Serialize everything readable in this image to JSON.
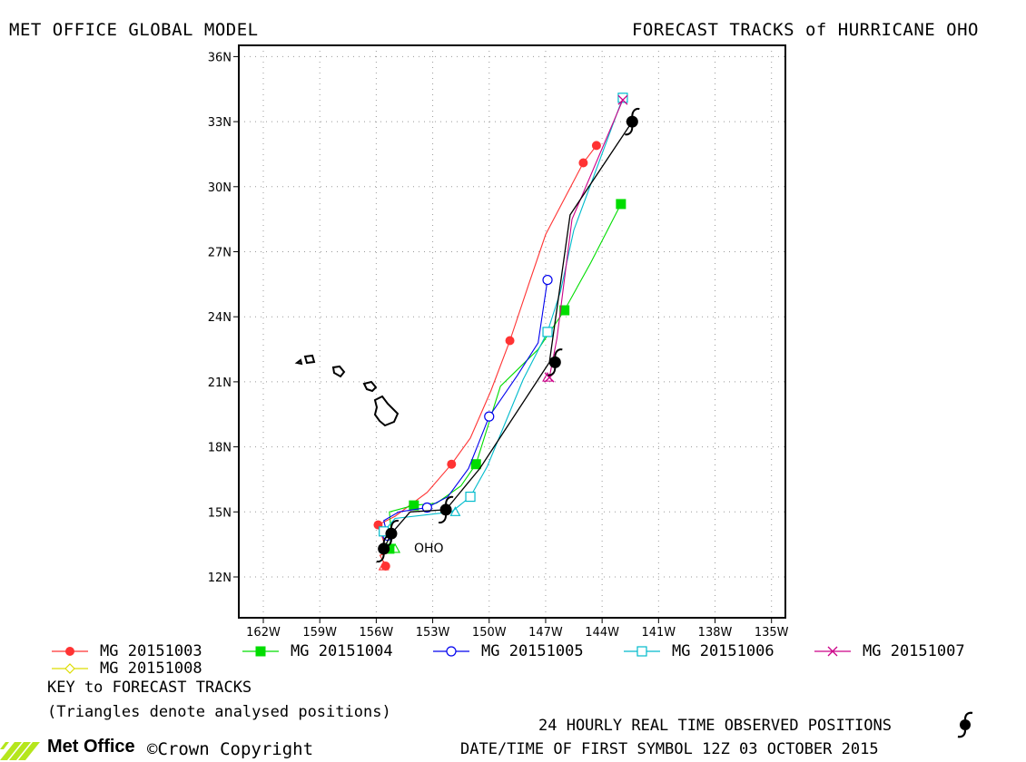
{
  "header": {
    "left_title": "MET OFFICE GLOBAL MODEL",
    "right_title": "FORECAST TRACKS of HURRICANE OHO"
  },
  "map": {
    "lon_range": [
      -163,
      -134
    ],
    "lat_range": [
      10.5,
      36.8
    ],
    "lat_ticks": [
      "36N",
      "33N",
      "30N",
      "27N",
      "24N",
      "21N",
      "18N",
      "15N",
      "12N"
    ],
    "lon_ticks": [
      "162W",
      "159W",
      "156W",
      "153W",
      "150W",
      "147W",
      "144W",
      "141W",
      "138W",
      "135W"
    ],
    "grid": "dotted",
    "storm_label": "OHO"
  },
  "chart_data": {
    "type": "line",
    "title": "FORECAST TRACKS of HURRICANE OHO",
    "xlabel": "",
    "ylabel": "",
    "xlim": [
      -163,
      -134
    ],
    "ylim": [
      10.5,
      36.8
    ],
    "series": [
      {
        "name": "MG 20151003",
        "color": "#ff3333",
        "marker": "filled-circle",
        "points": [
          [
            -155.5,
            12.5
          ],
          [
            -155.8,
            13.0
          ],
          [
            -155.4,
            13.1
          ],
          [
            -155.9,
            14.4
          ],
          [
            -155.0,
            14.8
          ],
          [
            -153.3,
            15.9
          ],
          [
            -152.0,
            17.2
          ],
          [
            -151.0,
            18.4
          ],
          [
            -149.9,
            20.6
          ],
          [
            -148.9,
            22.9
          ],
          [
            -147.9,
            25.5
          ],
          [
            -147.0,
            27.8
          ],
          [
            -145.0,
            31.1
          ],
          [
            -144.3,
            31.9
          ]
        ]
      },
      {
        "name": "MG 20151004",
        "color": "#00dd00",
        "marker": "filled-square",
        "points": [
          [
            -155.3,
            13.3
          ],
          [
            -155.2,
            14.0
          ],
          [
            -155.3,
            15.0
          ],
          [
            -154.0,
            15.3
          ],
          [
            -152.8,
            15.4
          ],
          [
            -151.5,
            16.2
          ],
          [
            -150.7,
            17.2
          ],
          [
            -149.4,
            20.8
          ],
          [
            -147.4,
            22.5
          ],
          [
            -146.0,
            24.3
          ],
          [
            -144.6,
            26.5
          ],
          [
            -143.0,
            29.2
          ]
        ]
      },
      {
        "name": "MG 20151005",
        "color": "#0000ee",
        "marker": "open-circle",
        "points": [
          [
            -155.4,
            13.9
          ],
          [
            -155.6,
            14.6
          ],
          [
            -154.8,
            15.0
          ],
          [
            -153.3,
            15.2
          ],
          [
            -152.2,
            15.7
          ],
          [
            -151.1,
            17.0
          ],
          [
            -150.0,
            19.4
          ],
          [
            -148.5,
            21.3
          ],
          [
            -147.4,
            22.8
          ],
          [
            -146.9,
            25.7
          ]
        ]
      },
      {
        "name": "MG 20151006",
        "color": "#00bbcc",
        "marker": "open-square",
        "points": [
          [
            -155.6,
            14.1
          ],
          [
            -155.0,
            14.7
          ],
          [
            -152.0,
            15.0
          ],
          [
            -151.0,
            15.7
          ],
          [
            -150.1,
            17.1
          ],
          [
            -148.2,
            21.1
          ],
          [
            -146.9,
            23.3
          ],
          [
            -146.2,
            25.2
          ],
          [
            -145.5,
            28.0
          ],
          [
            -142.9,
            34.1
          ]
        ]
      },
      {
        "name": "MG 20151007",
        "color": "#cc0088",
        "marker": "x",
        "points": [
          [
            -146.8,
            21.2
          ],
          [
            -146.4,
            23.0
          ],
          [
            -145.6,
            28.5
          ],
          [
            -142.9,
            34.0
          ]
        ]
      },
      {
        "name": "MG 20151008",
        "color": "#dddd00",
        "marker": "open-diamond",
        "points": []
      }
    ],
    "observed": {
      "name": "24 HOURLY REAL TIME OBSERVED POSITIONS",
      "color": "#000000",
      "points": [
        [
          -155.6,
          13.3
        ],
        [
          -155.2,
          14.0
        ],
        [
          -152.3,
          15.1
        ],
        [
          -146.5,
          21.9
        ],
        [
          -142.4,
          33.0
        ]
      ],
      "path": [
        [
          -155.6,
          13.3
        ],
        [
          -155.2,
          14.0
        ],
        [
          -154.2,
          15.0
        ],
        [
          -152.3,
          15.1
        ],
        [
          -150.5,
          17.0
        ],
        [
          -146.8,
          21.9
        ],
        [
          -145.7,
          28.7
        ],
        [
          -142.4,
          33.0
        ]
      ]
    },
    "analysed_triangles": [
      [
        -155.6,
        12.5
      ],
      [
        -155.0,
        13.3
      ],
      [
        -151.8,
        15.0
      ],
      [
        -146.9,
        21.2
      ]
    ]
  },
  "legend": {
    "key_title": "KEY to FORECAST TRACKS",
    "triangles_note": "(Triangles denote analysed positions)"
  },
  "footer": {
    "observed_label": "24 HOURLY REAL TIME OBSERVED POSITIONS",
    "datetime_label": "DATE/TIME OF FIRST SYMBOL 12Z 03 OCTOBER 2015",
    "brand": "Met Office",
    "copyright": "©Crown Copyright"
  }
}
